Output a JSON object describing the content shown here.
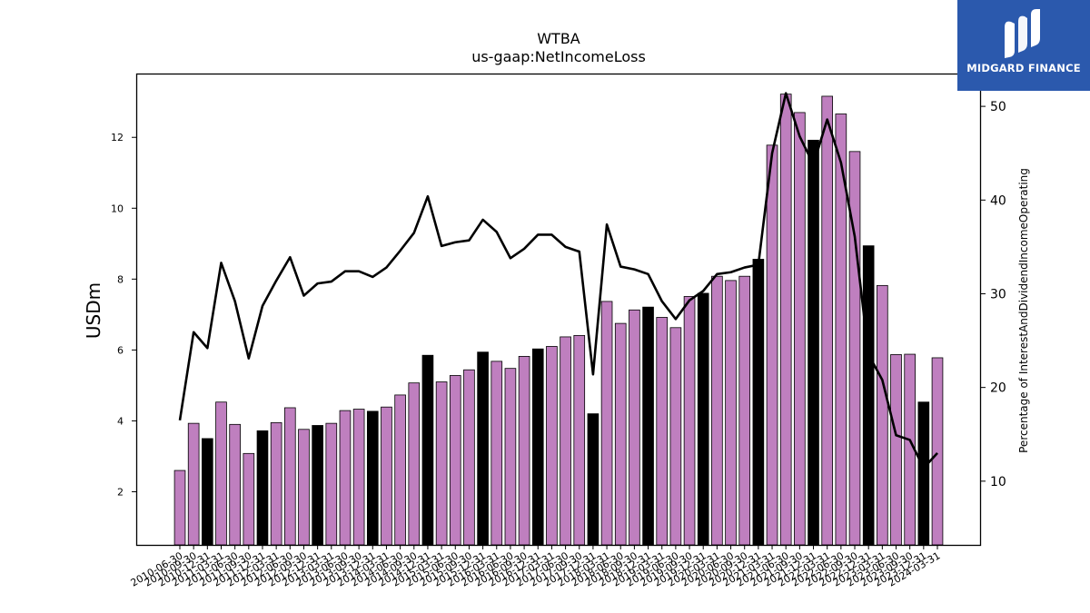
{
  "brand": {
    "name": "MIDGARD FINANCE",
    "bg_color": "#2b59ad"
  },
  "chart_data": {
    "type": "bar",
    "title": "WTBA",
    "subtitle": "us-gaap:NetIncomeLoss",
    "ylabel": "USDm",
    "y2label": "Percentage of InterestAndDividendIncomeOperating",
    "ylim": [
      0.5,
      13.8
    ],
    "y2lim": [
      3.2,
      53.5
    ],
    "yticks": [
      2,
      4,
      6,
      8,
      10,
      12
    ],
    "y2ticks": [
      10,
      20,
      30,
      40,
      50
    ],
    "bar_color": "#bf7fbf",
    "highlight_color": "#000000",
    "line_color": "#000000",
    "categories": [
      "2010-06-30",
      "2010-09-30",
      "2010-12-31",
      "2011-03-31",
      "2011-06-30",
      "2011-09-30",
      "2011-12-31",
      "2012-03-31",
      "2012-06-30",
      "2012-09-30",
      "2012-12-31",
      "2013-03-31",
      "2013-06-30",
      "2013-09-30",
      "2013-12-31",
      "2014-03-31",
      "2014-06-30",
      "2014-09-30",
      "2014-12-31",
      "2015-03-31",
      "2015-06-30",
      "2015-09-30",
      "2015-12-31",
      "2016-03-31",
      "2016-06-30",
      "2016-09-30",
      "2016-12-31",
      "2017-03-31",
      "2017-06-30",
      "2017-09-30",
      "2017-12-31",
      "2018-03-31",
      "2018-06-30",
      "2018-09-30",
      "2018-12-31",
      "2019-03-31",
      "2019-06-30",
      "2019-09-30",
      "2019-12-31",
      "2020-03-31",
      "2020-06-30",
      "2020-09-30",
      "2020-12-31",
      "2021-03-31",
      "2021-06-30",
      "2021-09-30",
      "2021-12-31",
      "2022-03-31",
      "2022-06-30",
      "2022-09-30",
      "2022-12-31",
      "2023-03-31",
      "2023-06-30",
      "2023-09-30",
      "2023-12-31",
      "2024-03-31"
    ],
    "shown_tick_labels": [
      "2010-06-30",
      "2010-09-30",
      "2010-12-31",
      "2011-03-31",
      "2011-06-30",
      "2011-09-30",
      "2011-12-31",
      "2012-03-31",
      "2012-06-30",
      "2012-09-30",
      "2012-12-31",
      "2013-03-31",
      "2013-06-30",
      "2013-09-30",
      "2013-12-31",
      "2014-03-31",
      "2014-06-30",
      "2014-09-30",
      "2014-12-31",
      "2015-03-31",
      "2015-06-30",
      "2015-09-30",
      "2015-12-31",
      "2016-03-31",
      "2016-06-30",
      "2016-09-30",
      "2016-12-31",
      "2017-03-31",
      "2017-06-30",
      "2017-09-30",
      "2017-12-31",
      "2018-03-31",
      "2018-06-30",
      "2018-09-30",
      "2018-12-31",
      "2019-03-31",
      "2019-06-30",
      "2019-09-30",
      "2019-12-31",
      "2020-03-31",
      "2020-06-30",
      "2020-09-30",
      "2020-12-31",
      "2021-03-31",
      "2021-06-30",
      "2021-09-30",
      "2021-12-31",
      "2022-03-31",
      "2022-06-30",
      "2022-09-30",
      "2022-12-31",
      "2023-03-31",
      "2023-06-30",
      "2023-09-30",
      "2023-12-31",
      "2024-03-31"
    ],
    "series": [
      {
        "kind": "bar",
        "values": [
          2.6,
          3.93,
          3.5,
          4.53,
          3.9,
          3.08,
          3.72,
          3.95,
          4.37,
          3.76,
          3.87,
          3.93,
          4.29,
          4.33,
          4.27,
          4.39,
          4.73,
          5.07,
          5.85,
          5.1,
          5.28,
          5.44,
          5.94,
          5.68,
          5.48,
          5.82,
          6.03,
          6.1,
          6.37,
          6.41,
          4.2,
          7.37,
          6.75,
          7.13,
          7.21,
          6.92,
          6.63,
          7.51,
          7.6,
          8.08,
          7.96,
          8.08,
          8.56,
          11.78,
          13.22,
          12.7,
          11.92,
          13.16,
          12.66,
          11.6,
          8.94,
          7.82,
          5.87,
          5.88,
          4.53,
          5.78
        ],
        "highlight": [
          false,
          false,
          true,
          false,
          false,
          false,
          true,
          false,
          false,
          false,
          true,
          false,
          false,
          false,
          true,
          false,
          false,
          false,
          true,
          false,
          false,
          false,
          true,
          false,
          false,
          false,
          true,
          false,
          false,
          false,
          true,
          false,
          false,
          false,
          true,
          false,
          false,
          false,
          true,
          false,
          false,
          false,
          true,
          false,
          false,
          false,
          true,
          false,
          false,
          false,
          true,
          false,
          false,
          false,
          true,
          false
        ]
      },
      {
        "kind": "line",
        "axis": "right",
        "values": [
          16.5,
          25.9,
          24.2,
          33.3,
          29.2,
          23.1,
          28.7,
          31.4,
          33.9,
          29.8,
          31.1,
          31.3,
          32.4,
          32.4,
          31.8,
          32.8,
          34.6,
          36.5,
          40.4,
          35.1,
          35.5,
          35.7,
          37.9,
          36.6,
          33.8,
          34.8,
          36.3,
          36.3,
          35.0,
          34.5,
          21.4,
          37.4,
          32.9,
          32.6,
          32.1,
          29.2,
          27.3,
          29.3,
          30.3,
          32.1,
          32.3,
          32.8,
          33.1,
          45.0,
          51.4,
          46.8,
          43.8,
          48.6,
          44.0,
          36.1,
          23.5,
          20.8,
          14.9,
          14.4,
          11.4,
          13.0
        ]
      }
    ]
  }
}
